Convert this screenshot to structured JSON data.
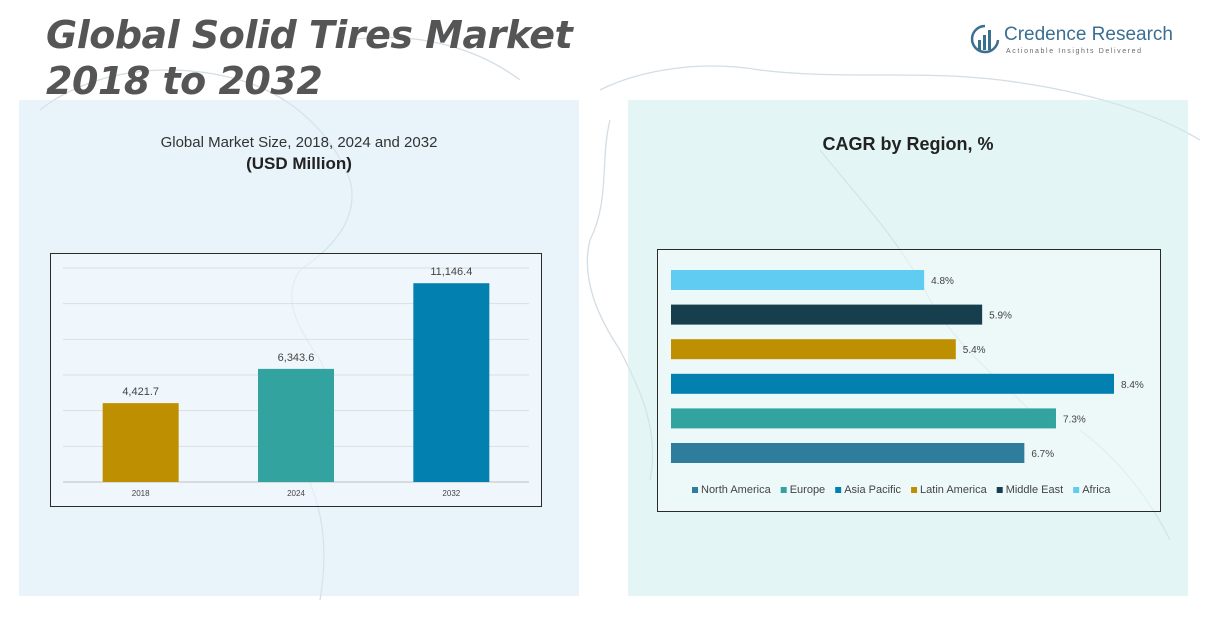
{
  "page": {
    "title_line1": "Global Solid Tires Market",
    "title_line2": "2018 to 2032"
  },
  "logo": {
    "name": "Credence Research",
    "tagline": "Actionable Insights Delivered",
    "icon": "bar-chart-globe-icon"
  },
  "chart_data": [
    {
      "type": "bar",
      "title": "Global Market Size, 2018, 2024 and 2032",
      "subtitle": "(USD Million)",
      "categories": [
        "2018",
        "2024",
        "2032"
      ],
      "values": [
        4421.7,
        6343.6,
        11146.4
      ],
      "value_labels": [
        "4,421.7",
        "6,343.6",
        "11,146.4"
      ],
      "colors": [
        "#be8f00",
        "#33a3a0",
        "#0280b0"
      ],
      "ylim": [
        0,
        12000
      ],
      "grid": true
    },
    {
      "type": "bar",
      "orientation": "horizontal",
      "title": "CAGR by Region, %",
      "categories": [
        "North America",
        "Europe",
        "Asia Pacific",
        "Latin America",
        "Middle East",
        "Africa"
      ],
      "values": [
        6.7,
        7.3,
        8.4,
        5.4,
        5.9,
        4.8
      ],
      "value_labels": [
        "6.7%",
        "7.3%",
        "8.4%",
        "5.4%",
        "5.9%",
        "4.8%"
      ],
      "colors": [
        "#2e7d9c",
        "#33a3a0",
        "#0280b0",
        "#be8f00",
        "#163e4d",
        "#60ccf2"
      ],
      "xlim": [
        0,
        8.4
      ],
      "legend": "bottom",
      "grid": false
    }
  ]
}
